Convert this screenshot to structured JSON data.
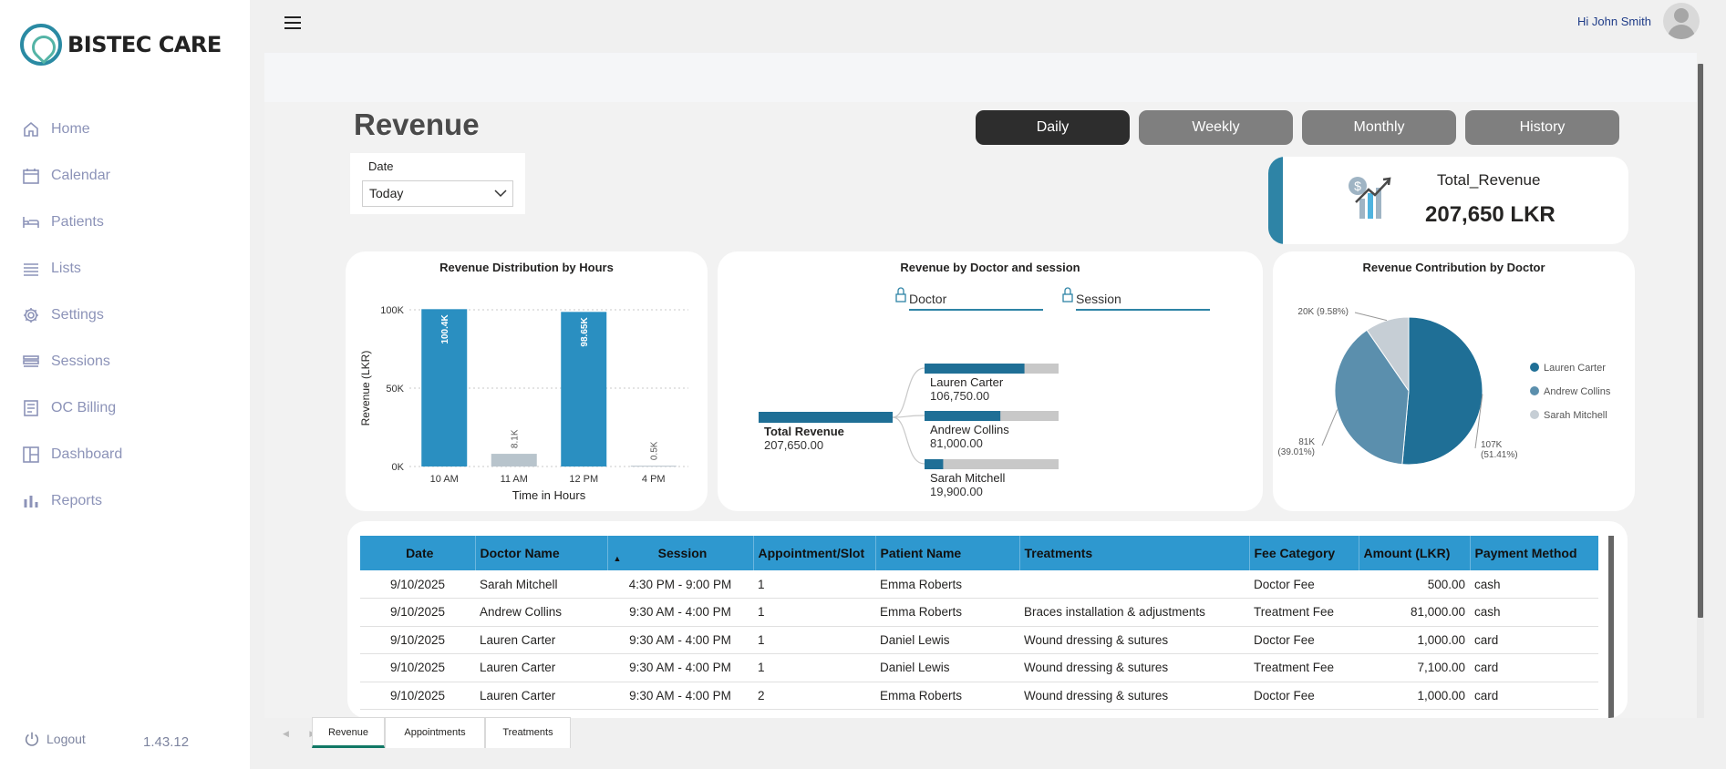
{
  "app": {
    "brand": "BISTEC CARE",
    "version": "1.43.12",
    "logout_label": "Logout"
  },
  "sidebar": {
    "items": [
      {
        "label": "Home",
        "icon": "home-icon"
      },
      {
        "label": "Calendar",
        "icon": "calendar-icon"
      },
      {
        "label": "Patients",
        "icon": "bed-icon"
      },
      {
        "label": "Lists",
        "icon": "list-icon"
      },
      {
        "label": "Settings",
        "icon": "gear-icon"
      },
      {
        "label": "Sessions",
        "icon": "layers-icon"
      },
      {
        "label": "OC Billing",
        "icon": "billing-icon"
      },
      {
        "label": "Dashboard",
        "icon": "dashboard-icon"
      },
      {
        "label": "Reports",
        "icon": "bar-chart-icon"
      }
    ]
  },
  "header": {
    "greeting": "Hi John Smith"
  },
  "report": {
    "title": "Revenue",
    "period_buttons": [
      {
        "label": "Daily",
        "active": true
      },
      {
        "label": "Weekly",
        "active": false
      },
      {
        "label": "Monthly",
        "active": false
      },
      {
        "label": "History",
        "active": false
      }
    ],
    "date_filter": {
      "label": "Date",
      "value": "Today"
    },
    "kpi": {
      "name": "Total_Revenue",
      "value": "207,650 LKR"
    },
    "decomp": {
      "title": "Revenue by Doctor and session",
      "level_headers": [
        "Doctor",
        "Session"
      ],
      "root": {
        "label": "Total Revenue",
        "value": "207,650.00"
      },
      "nodes": [
        {
          "label": "Lauren Carter",
          "value": "106,750.00",
          "share": 0.5141
        },
        {
          "label": "Andrew Collins",
          "value": "81,000.00",
          "share": 0.3901
        },
        {
          "label": "Sarah Mitchell",
          "value": "19,900.00",
          "share": 0.0958
        }
      ]
    },
    "table": {
      "columns": [
        "Date",
        "Doctor Name",
        "Session",
        "Appointment/Slot",
        "Patient Name",
        "Treatments",
        "Fee Category",
        "Amount (LKR)",
        "Payment Method"
      ],
      "sort_indicator": "▲",
      "rows": [
        [
          "9/10/2025",
          "Sarah Mitchell",
          "4:30 PM - 9:00 PM",
          "1",
          "Emma Roberts",
          "",
          "Doctor Fee",
          "500.00",
          "cash"
        ],
        [
          "9/10/2025",
          "Andrew Collins",
          "9:30 AM - 4:00 PM",
          "1",
          "Emma Roberts",
          "Braces installation & adjustments",
          "Treatment Fee",
          "81,000.00",
          "cash"
        ],
        [
          "9/10/2025",
          "Lauren Carter",
          "9:30 AM - 4:00 PM",
          "1",
          "Daniel Lewis",
          "Wound dressing & sutures",
          "Doctor Fee",
          "1,000.00",
          "card"
        ],
        [
          "9/10/2025",
          "Lauren Carter",
          "9:30 AM - 4:00 PM",
          "1",
          "Daniel Lewis",
          "Wound dressing & sutures",
          "Treatment Fee",
          "7,100.00",
          "card"
        ],
        [
          "9/10/2025",
          "Lauren Carter",
          "9:30 AM - 4:00 PM",
          "2",
          "Emma Roberts",
          "Wound dressing & sutures",
          "Doctor Fee",
          "1,000.00",
          "card"
        ]
      ]
    },
    "page_tabs": [
      {
        "label": "Revenue",
        "active": true
      },
      {
        "label": "Appointments",
        "active": false
      },
      {
        "label": "Treatments",
        "active": false
      }
    ]
  },
  "chart_data": [
    {
      "type": "bar",
      "title": "Revenue Distribution by Hours",
      "xlabel": "Time in Hours",
      "ylabel": "Revenue (LKR)",
      "categories": [
        "10 AM",
        "11 AM",
        "12 PM",
        "4 PM"
      ],
      "values": [
        100400,
        8100,
        98650,
        500
      ],
      "data_labels": [
        "100.4K",
        "8.1K",
        "98.65K",
        "0.5K"
      ],
      "highlight": [
        true,
        false,
        true,
        false
      ],
      "y_ticks": [
        {
          "value": 0,
          "label": "0K"
        },
        {
          "value": 50000,
          "label": "50K"
        },
        {
          "value": 100000,
          "label": "100K"
        }
      ],
      "ylim": [
        0,
        100000
      ],
      "grid": true,
      "colors": {
        "highlight": "#2a8fc1",
        "muted": "#b8c4cc"
      }
    },
    {
      "type": "pie",
      "title": "Revenue Contribution by Doctor",
      "slices": [
        {
          "name": "Lauren Carter",
          "value": 106750,
          "label": "107K\n(51.41%)",
          "color": "#1f6f96"
        },
        {
          "name": "Andrew Collins",
          "value": 81000,
          "label": "81K\n(39.01%)",
          "color": "#5b8fad"
        },
        {
          "name": "Sarah Mitchell",
          "value": 19900,
          "label": "20K (9.58%)",
          "color": "#c6ced5"
        }
      ],
      "legend": "right"
    }
  ]
}
